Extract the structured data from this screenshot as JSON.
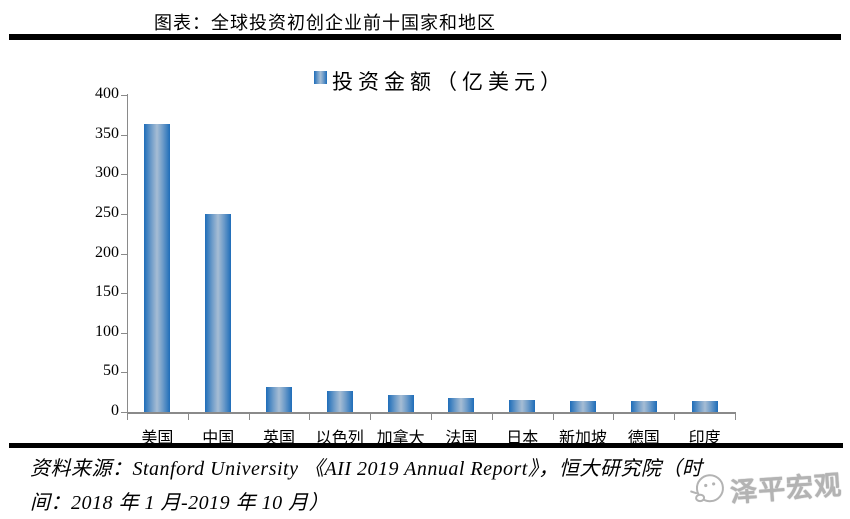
{
  "page": {
    "title": "图表：全球投资初创企业前十国家和地区"
  },
  "chart_data": {
    "type": "bar",
    "title": "图表：全球投资初创企业前十国家和地区",
    "legend": "投资金额（亿美元）",
    "legend_position": "top",
    "categories": [
      "美国",
      "中国",
      "英国",
      "以色列",
      "加拿大",
      "法国",
      "日本",
      "新加坡",
      "德国",
      "印度"
    ],
    "values": [
      363,
      250,
      31,
      26,
      22,
      18,
      15,
      14,
      14,
      14
    ],
    "xlabel": "",
    "ylabel": "",
    "ylim": [
      0,
      400
    ],
    "ytick_step": 50,
    "grid": false,
    "colors": {
      "bar_edge": "#1e6db9",
      "bar_center": "#a6bdd4",
      "axis": "#8a8a8a",
      "text": "#000000"
    }
  },
  "source": {
    "line1": "资料来源：Stanford University 《AII 2019 Annual Report》，恒大研究院（时",
    "line2": "间：2018 年 1 月-2019 年 10 月）"
  },
  "watermark": {
    "icon": "shouting-face-icon",
    "text": "泽平宏观"
  }
}
